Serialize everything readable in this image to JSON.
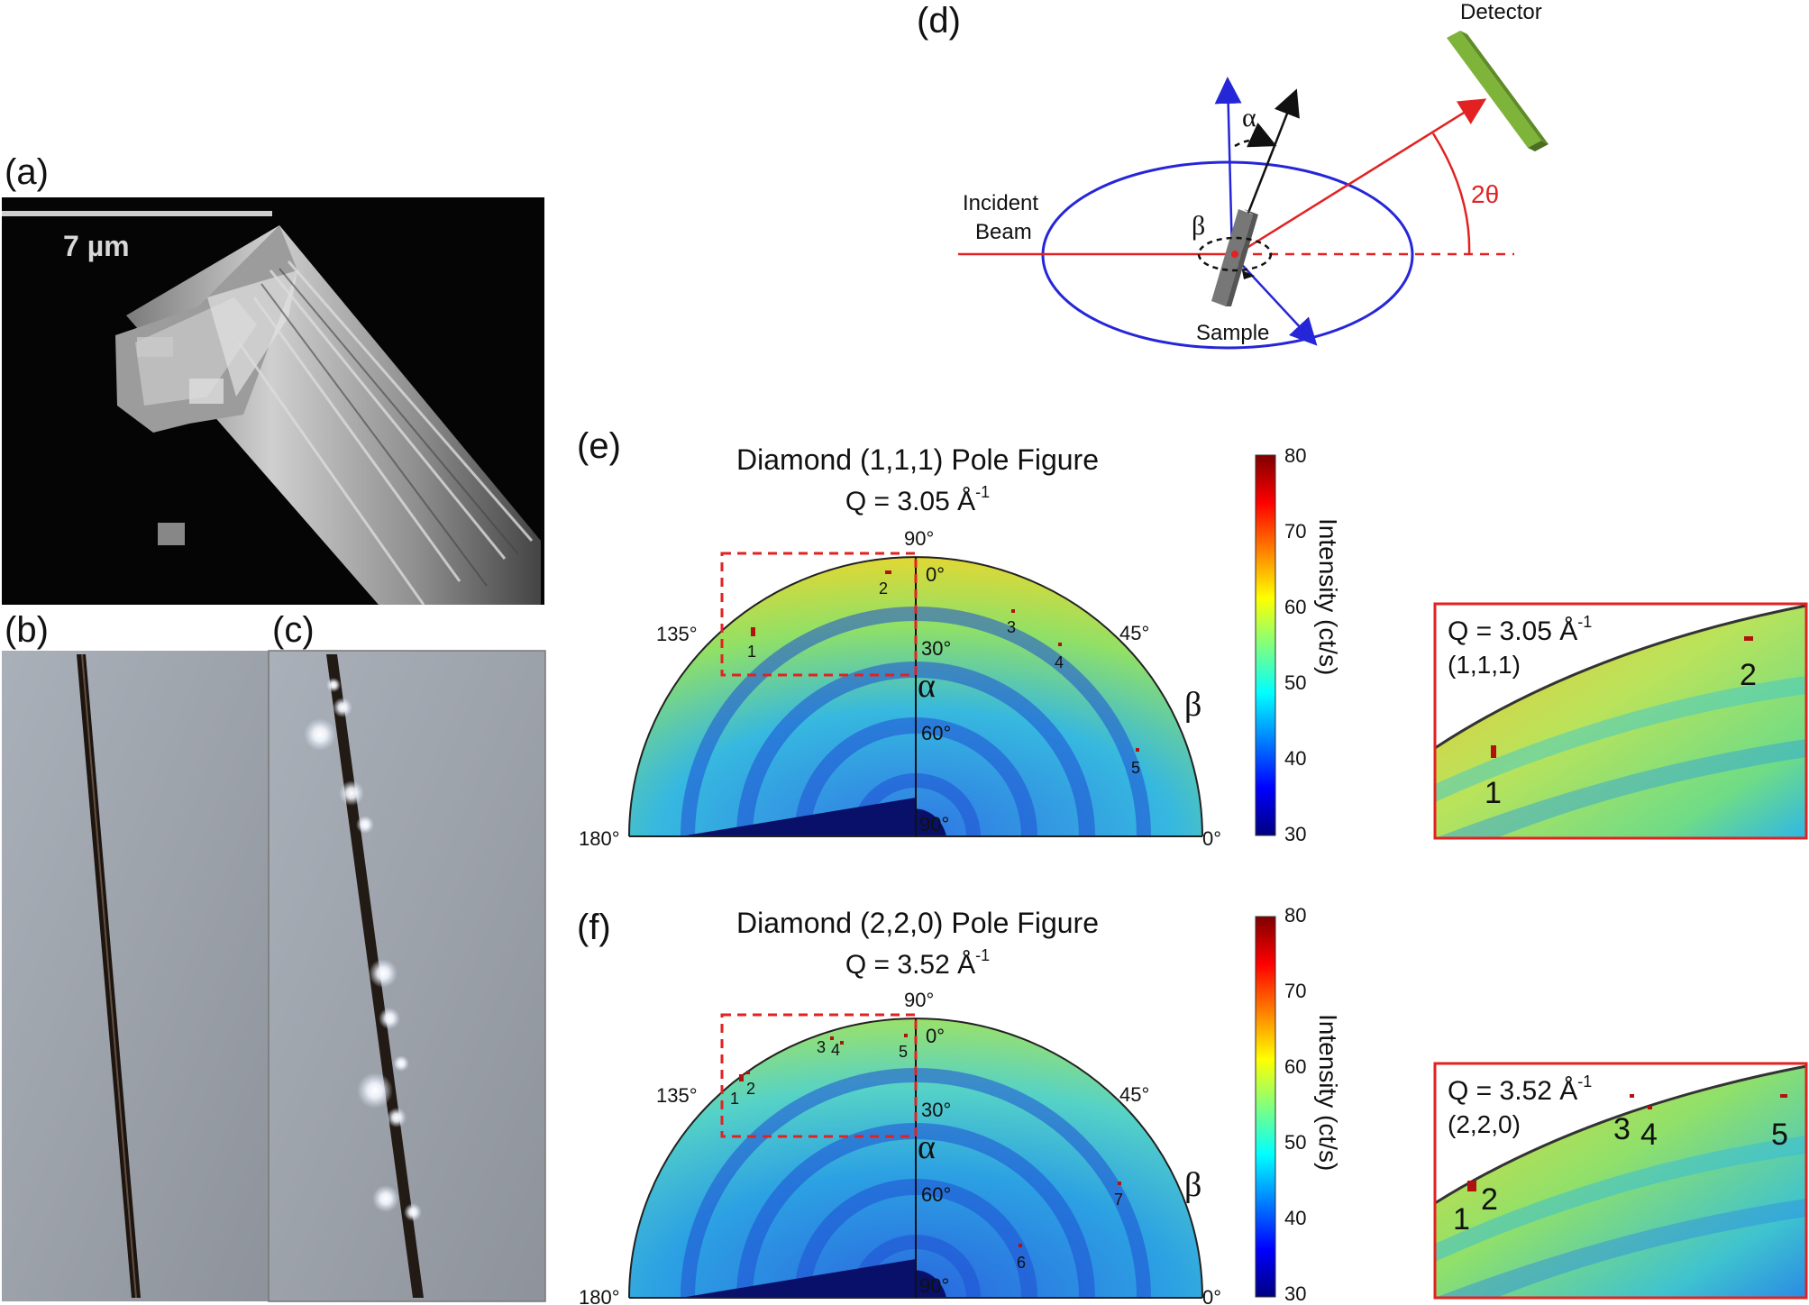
{
  "panels": {
    "a": {
      "label": "(a)",
      "scale_bar": "7 µm"
    },
    "b": {
      "label": "(b)"
    },
    "c": {
      "label": "(c)"
    },
    "d": {
      "label": "(d)",
      "detector": "Detector",
      "incident_beam_line1": "Incident",
      "incident_beam_line2": "Beam",
      "sample": "Sample",
      "alpha": "α",
      "beta": "β",
      "two_theta": "2θ"
    },
    "e": {
      "label": "(e)",
      "title": "Diamond (1,1,1) Pole Figure",
      "q_label": "Q = 3.05 Å",
      "q_exponent": "-1",
      "alpha_symbol": "α",
      "beta_symbol": "β",
      "peaks": [
        "1",
        "2",
        "3",
        "4",
        "5"
      ],
      "inset": {
        "q_label": "Q = 3.05 Å",
        "q_exponent": "-1",
        "miller": "(1,1,1)",
        "peaks": [
          "1",
          "2"
        ]
      }
    },
    "f": {
      "label": "(f)",
      "title": "Diamond (2,2,0) Pole Figure",
      "q_label": "Q = 3.52 Å",
      "q_exponent": "-1",
      "alpha_symbol": "α",
      "beta_symbol": "β",
      "peaks": [
        "1",
        "2",
        "3",
        "4",
        "5",
        "6",
        "7"
      ],
      "inset": {
        "q_label": "Q = 3.52 Å",
        "q_exponent": "-1",
        "miller": "(2,2,0)",
        "peaks": [
          "1",
          "2",
          "3",
          "4",
          "5"
        ]
      }
    }
  },
  "pole_figure_ticks": {
    "beta_90": "90°",
    "beta_135": "135°",
    "beta_45": "45°",
    "beta_180": "180°",
    "beta_0": "0°",
    "alpha_0": "0°",
    "alpha_30": "30°",
    "alpha_60": "60°",
    "alpha_90": "90°"
  },
  "colorbar": {
    "label": "Intensity (ct/s)",
    "ticks": [
      "80",
      "70",
      "60",
      "50",
      "40",
      "30"
    ],
    "colors": [
      "#00007f",
      "#0000ff",
      "#007fff",
      "#00ffff",
      "#7fff7f",
      "#ffff00",
      "#ff7f00",
      "#ff0000",
      "#7f0000"
    ]
  }
}
